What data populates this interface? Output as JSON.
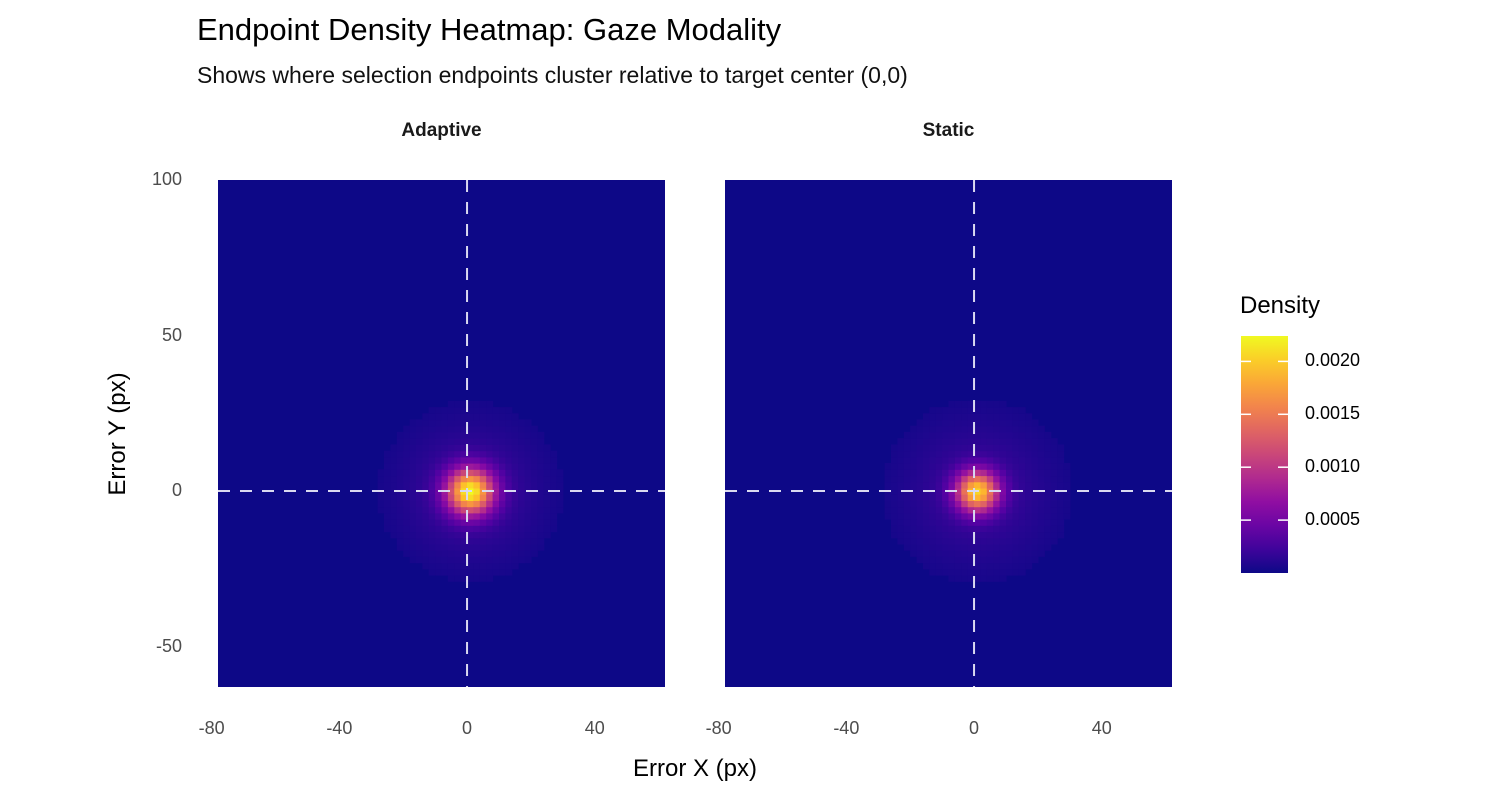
{
  "chart_data": {
    "type": "heatmap",
    "title": "Endpoint Density Heatmap: Gaze Modality",
    "subtitle": "Shows where selection endpoints cluster relative to target center (0,0)",
    "xlabel": "Error X (px)",
    "ylabel": "Error Y (px)",
    "xlim": [
      -78,
      62
    ],
    "ylim": [
      -63,
      100
    ],
    "x_ticks": [
      "-80",
      "-40",
      "0",
      "40"
    ],
    "x_tick_values": [
      -80,
      -40,
      0,
      40
    ],
    "y_ticks": [
      "100",
      "50",
      "0",
      "-50"
    ],
    "y_tick_values": [
      100,
      50,
      0,
      -50
    ],
    "reference_lines": {
      "x": 0,
      "y": 0,
      "style": "dashed",
      "color": "#d9d9f0"
    },
    "colormap": "plasma",
    "legend": {
      "title": "Density",
      "placement": "right",
      "range": [
        0,
        0.00224
      ],
      "ticks": [
        "0.0020",
        "0.0015",
        "0.0010",
        "0.0005"
      ],
      "tick_values": [
        0.002,
        0.0015,
        0.001,
        0.0005
      ]
    },
    "panels": [
      {
        "label": "Adaptive",
        "peak_density": 0.00224,
        "peak_at": [
          1,
          0
        ],
        "core_sd": 5,
        "halo_sd": 16,
        "halo_fraction": 0.1
      },
      {
        "label": "Static",
        "peak_density": 0.00205,
        "peak_at": [
          1,
          0
        ],
        "core_sd": 4.5,
        "halo_sd": 17,
        "halo_fraction": 0.1
      }
    ],
    "grid": false
  }
}
